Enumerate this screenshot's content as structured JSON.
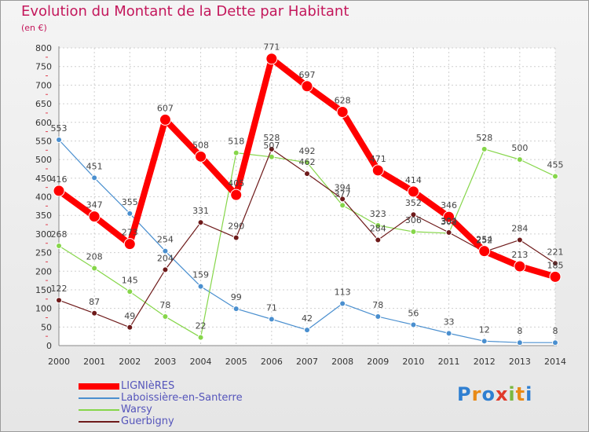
{
  "title": "Evolution du Montant de la Dette par Habitant",
  "unit": "(en €)",
  "brand": {
    "text": "Proxiti"
  },
  "chart_data": {
    "type": "line",
    "title": "Evolution du Montant de la Dette par Habitant",
    "ylabel": "(en €)",
    "x": [
      "2000",
      "2001",
      "2002",
      "2003",
      "2004",
      "2005",
      "2006",
      "2007",
      "2008",
      "2009",
      "2010",
      "2011",
      "2012",
      "2013",
      "2014"
    ],
    "ylim": [
      0,
      800
    ],
    "yticks": [
      0,
      50,
      100,
      150,
      200,
      250,
      300,
      350,
      400,
      450,
      500,
      550,
      600,
      650,
      700,
      750,
      800
    ],
    "grid": true,
    "legend_position": "bottom-left",
    "series": [
      {
        "name": "LIGNIèRES",
        "color": "#ff0000",
        "values": [
          416,
          347,
          273,
          607,
          508,
          405,
          771,
          697,
          628,
          471,
          414,
          346,
          254,
          213,
          185
        ]
      },
      {
        "name": "Laboissière-en-Santerre",
        "color": "#4a8fcf",
        "values": [
          553,
          451,
          355,
          254,
          159,
          99,
          71,
          42,
          113,
          78,
          56,
          33,
          12,
          8,
          8
        ]
      },
      {
        "name": "Warsy",
        "color": "#86d64a",
        "values": [
          268,
          208,
          145,
          78,
          22,
          518,
          507,
          492,
          377,
          323,
          306,
          302,
          528,
          500,
          455
        ]
      },
      {
        "name": "Guerbigny",
        "color": "#6e1a1a",
        "values": [
          122,
          87,
          49,
          204,
          331,
          290,
          528,
          462,
          394,
          284,
          352,
          304,
          252,
          284,
          221
        ]
      }
    ]
  }
}
